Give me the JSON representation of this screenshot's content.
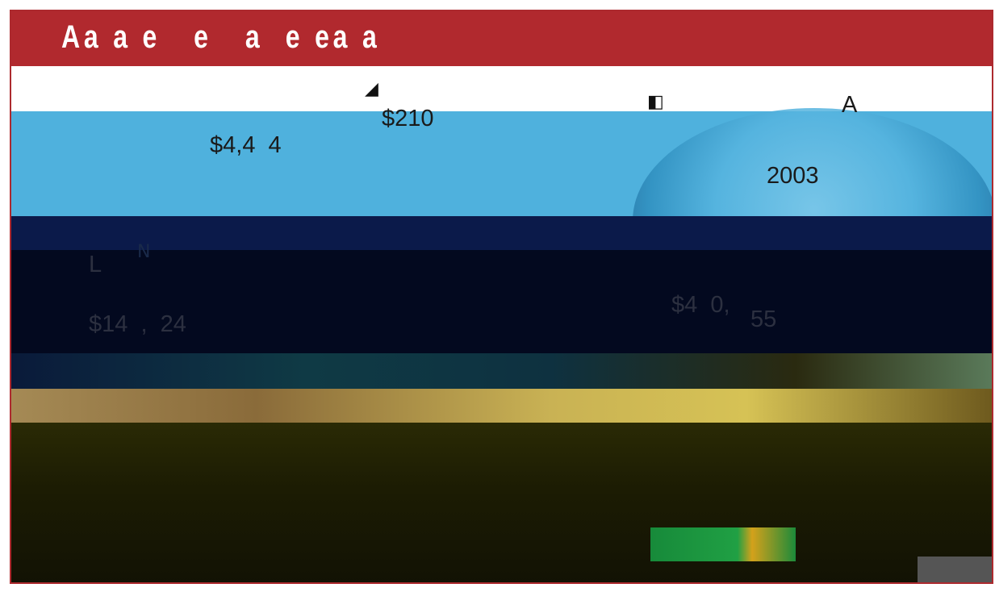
{
  "header": {
    "title": "Aa a e   e   a  e ea a"
  },
  "labels": {
    "top_small": "$210",
    "left_amount": "$4,4  4",
    "letter_a": "A",
    "year": "2003",
    "l_text": "L",
    "bottom_left_amount": "$14  ,  24",
    "bottom_right_amount_a": "$4  0,",
    "bottom_right_amount_b": "55"
  },
  "colors": {
    "header": "#b1292e",
    "blue": "#4fb1dd",
    "navy": "#0b1a4a"
  }
}
